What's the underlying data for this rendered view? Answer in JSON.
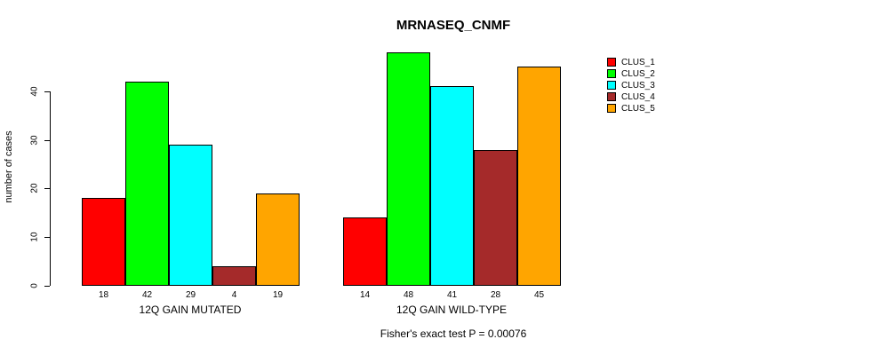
{
  "chart_data": {
    "type": "bar",
    "title": "MRNASEQ_CNMF",
    "ylabel": "number of cases",
    "xlabel": "",
    "yticks": [
      0,
      10,
      20,
      30,
      40
    ],
    "ylim": [
      0,
      48
    ],
    "grid": false,
    "legend_position": "right-outside",
    "series_names": [
      "CLUS_1",
      "CLUS_2",
      "CLUS_3",
      "CLUS_4",
      "CLUS_5"
    ],
    "colors": [
      "#FF0000",
      "#00FF00",
      "#00FFFF",
      "#A52A2A",
      "#FFA500"
    ],
    "groups": [
      {
        "label": "12Q GAIN MUTATED",
        "values": [
          18,
          42,
          29,
          4,
          19
        ]
      },
      {
        "label": "12Q GAIN WILD-TYPE",
        "values": [
          14,
          48,
          41,
          28,
          45
        ]
      }
    ],
    "annotation": "Fisher's exact test P = 0.00076"
  }
}
